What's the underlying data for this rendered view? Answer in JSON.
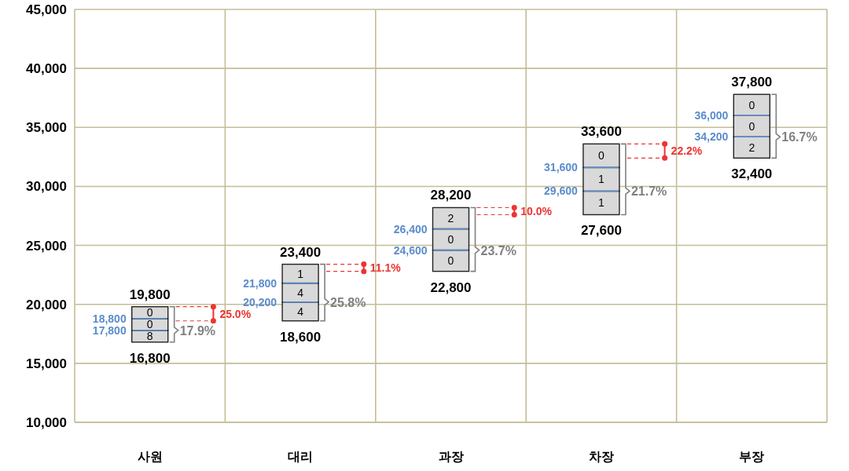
{
  "chart_data": {
    "type": "bar",
    "grid": true,
    "categories": [
      "사원",
      "대리",
      "과장",
      "차장",
      "부장"
    ],
    "series": [
      {
        "color": "#d9d9d9",
        "base": [
          16800,
          18600,
          22800,
          27600,
          32400
        ],
        "values": [
          1000,
          1600,
          1800,
          2000,
          1800
        ]
      },
      {
        "color": "#d9d9d9",
        "base": [
          17800,
          20200,
          24600,
          29600,
          34200
        ],
        "values": [
          1000,
          1600,
          1800,
          2000,
          1800
        ]
      },
      {
        "color": "#d9d9d9",
        "base": [
          18800,
          21800,
          26400,
          31600,
          36000
        ],
        "values": [
          1000,
          1600,
          1800,
          2000,
          1800
        ]
      }
    ],
    "ylim": [
      10000,
      45000
    ],
    "yticks": [
      {
        "value": 10000,
        "label": "10,000"
      },
      {
        "value": 15000,
        "label": "15,000"
      },
      {
        "value": 20000,
        "label": "20,000"
      },
      {
        "value": 25000,
        "label": "25,000"
      },
      {
        "value": 30000,
        "label": "30,000"
      },
      {
        "value": 35000,
        "label": "35,000"
      },
      {
        "value": 40000,
        "label": "40,000"
      },
      {
        "value": 45000,
        "label": "45,000"
      }
    ],
    "annotations": [
      {
        "text": "16,800",
        "x": "사원",
        "y": 16800
      },
      {
        "text": "17,800",
        "x": "사원",
        "y": 17800
      },
      {
        "text": "18,800",
        "x": "사원",
        "y": 18800
      },
      {
        "text": "19,800",
        "x": "사원",
        "y": 19800
      },
      {
        "text": "18,600",
        "x": "대리",
        "y": 18600
      },
      {
        "text": "20,200",
        "x": "대리",
        "y": 20200
      },
      {
        "text": "21,800",
        "x": "대리",
        "y": 21800
      },
      {
        "text": "23,400",
        "x": "대리",
        "y": 23400
      },
      {
        "text": "22,800",
        "x": "과장",
        "y": 22800
      },
      {
        "text": "24,600",
        "x": "과장",
        "y": 24600
      },
      {
        "text": "26,400",
        "x": "과장",
        "y": 26400
      },
      {
        "text": "28,200",
        "x": "과장",
        "y": 28200
      },
      {
        "text": "27,600",
        "x": "차장",
        "y": 27600
      },
      {
        "text": "29,600",
        "x": "차장",
        "y": 29600
      },
      {
        "text": "31,600",
        "x": "차장",
        "y": 31600
      },
      {
        "text": "33,600",
        "x": "차장",
        "y": 33600
      },
      {
        "text": "32,400",
        "x": "부장",
        "y": 32400
      },
      {
        "text": "34,200",
        "x": "부장",
        "y": 34200
      },
      {
        "text": "36,000",
        "x": "부장",
        "y": 36000
      },
      {
        "text": "37,800",
        "x": "부장",
        "y": 37800
      },
      "8",
      "0",
      "0",
      "4",
      "4",
      "1",
      "0",
      "0",
      "2",
      "1",
      "1",
      "0",
      "2",
      "0",
      "0",
      {
        "text": "17.9%",
        "x": "사원",
        "y": 17800
      },
      {
        "text": "25.8%",
        "x": "대리",
        "y": 20200
      },
      {
        "text": "23.7%",
        "x": "과장",
        "y": 24600
      },
      {
        "text": "21.7%",
        "x": "차장",
        "y": 29600
      },
      {
        "text": "16.7%",
        "x": "부장",
        "y": 34200
      },
      "25.0%",
      "11.1%",
      "10.0%",
      "22.2%"
    ]
  }
}
